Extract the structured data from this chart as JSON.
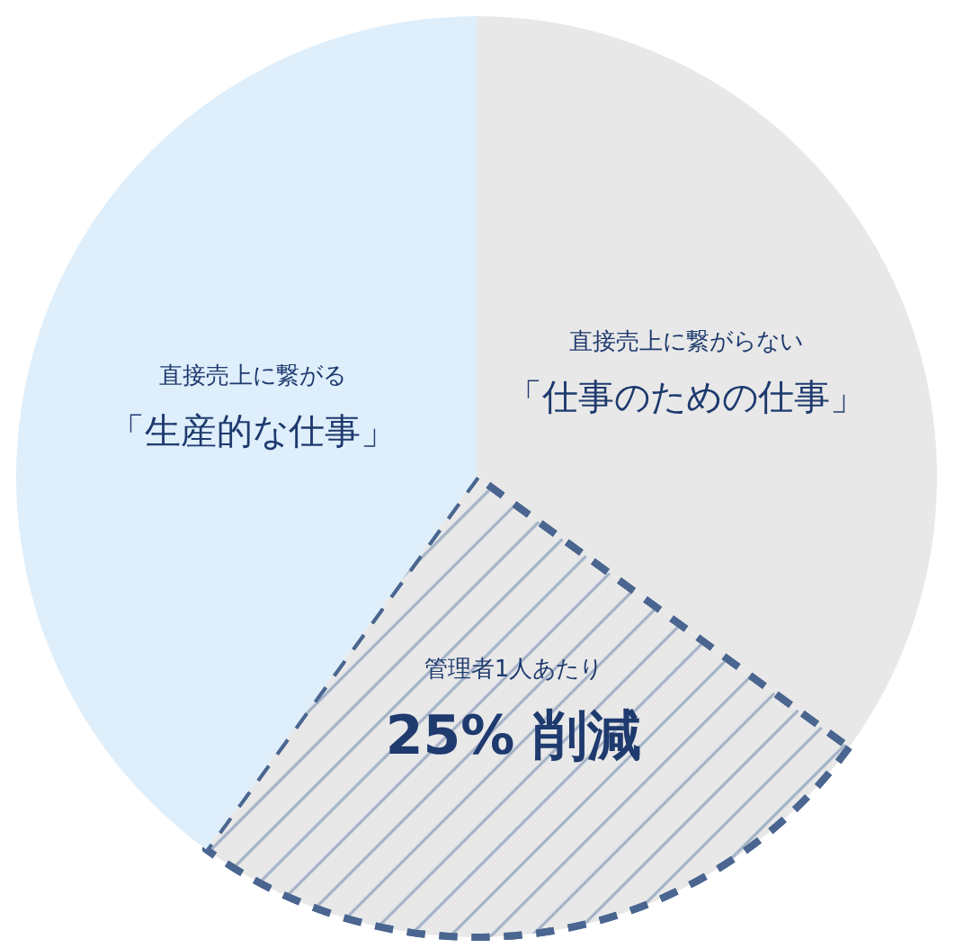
{
  "chart_data": {
    "type": "pie",
    "categories": [
      "直接売上に繋がらない「仕事のための仕事」",
      "管理者1人あたり",
      "直接売上に繋がる「生産的な仕事」"
    ],
    "values": [
      35,
      25,
      40
    ],
    "colors": [
      "#e8e8e8",
      "#e8e8e8",
      "#deeefb"
    ],
    "value_labels": [
      null,
      "25% 削減",
      null
    ],
    "legend": false
  }
}
